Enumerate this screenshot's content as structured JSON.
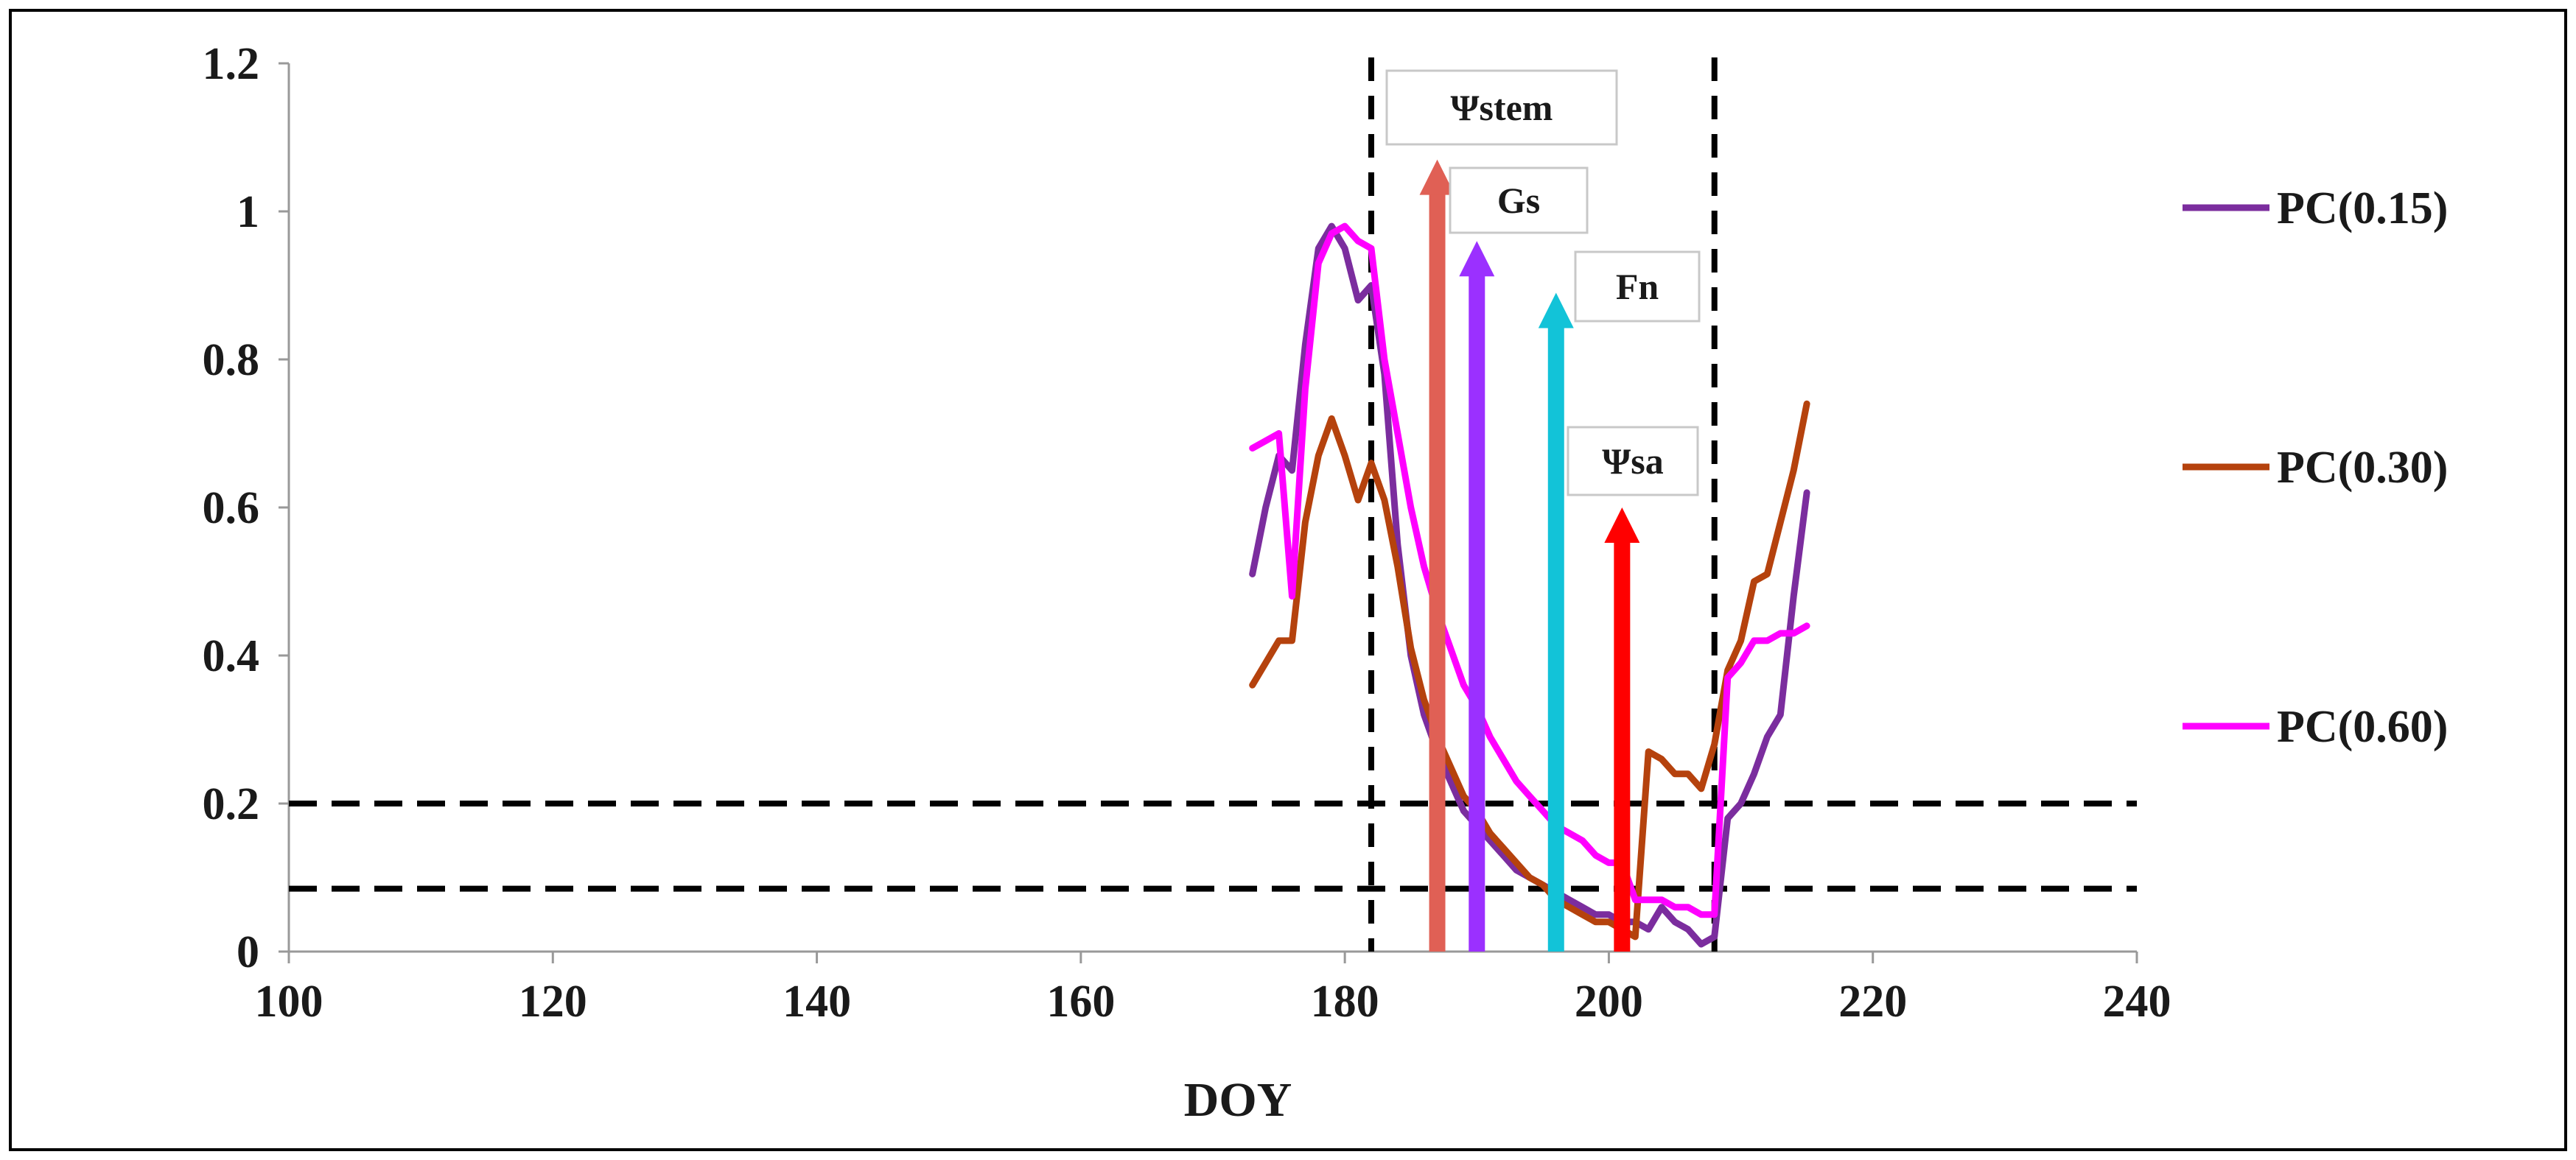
{
  "chart_data": {
    "type": "line",
    "title": "",
    "xlabel": "DOY",
    "ylabel": "",
    "xlim": [
      100,
      240
    ],
    "ylim": [
      0,
      1.2
    ],
    "xticks": [
      100,
      120,
      140,
      160,
      180,
      200,
      220,
      240
    ],
    "yticks": [
      0,
      0.2,
      0.4,
      0.6,
      0.8,
      1,
      1.2
    ],
    "ytick_labels": [
      "0",
      "0.2",
      "0.4",
      "0.6",
      "0.8",
      "1",
      "1.2"
    ],
    "grid": false,
    "legend_position": "right",
    "series": [
      {
        "name": "PC(0.15)",
        "color": "#7B2D9E",
        "x": [
          173,
          174,
          175,
          176,
          177,
          178,
          179,
          180,
          181,
          182,
          183,
          184,
          185,
          186,
          187,
          188,
          189,
          190,
          191,
          192,
          193,
          194,
          195,
          196,
          197,
          198,
          199,
          200,
          201,
          202,
          203,
          204,
          205,
          206,
          207,
          208,
          209,
          210,
          211,
          212,
          213,
          214,
          215
        ],
        "y": [
          0.51,
          0.6,
          0.67,
          0.65,
          0.82,
          0.95,
          0.98,
          0.95,
          0.88,
          0.9,
          0.78,
          0.55,
          0.4,
          0.32,
          0.27,
          0.23,
          0.19,
          0.17,
          0.15,
          0.13,
          0.11,
          0.1,
          0.09,
          0.08,
          0.07,
          0.06,
          0.05,
          0.05,
          0.04,
          0.04,
          0.03,
          0.06,
          0.04,
          0.03,
          0.01,
          0.02,
          0.18,
          0.2,
          0.24,
          0.29,
          0.32,
          0.48,
          0.62
        ]
      },
      {
        "name": "PC(0.30)",
        "color": "#B5420D",
        "x": [
          173,
          174,
          175,
          176,
          177,
          178,
          179,
          180,
          181,
          182,
          183,
          184,
          185,
          186,
          187,
          188,
          189,
          190,
          191,
          192,
          193,
          194,
          195,
          196,
          197,
          198,
          199,
          200,
          201,
          202,
          203,
          204,
          205,
          206,
          207,
          208,
          209,
          210,
          211,
          212,
          213,
          214,
          215
        ],
        "y": [
          0.36,
          0.39,
          0.42,
          0.42,
          0.58,
          0.67,
          0.72,
          0.67,
          0.61,
          0.66,
          0.61,
          0.52,
          0.41,
          0.34,
          0.29,
          0.25,
          0.21,
          0.19,
          0.16,
          0.14,
          0.12,
          0.1,
          0.09,
          0.07,
          0.06,
          0.05,
          0.04,
          0.04,
          0.03,
          0.02,
          0.27,
          0.26,
          0.24,
          0.24,
          0.22,
          0.28,
          0.38,
          0.42,
          0.5,
          0.51,
          0.58,
          0.65,
          0.74
        ]
      },
      {
        "name": "PC(0.60)",
        "color": "#FF00FF",
        "x": [
          173,
          174,
          175,
          176,
          177,
          178,
          179,
          180,
          181,
          182,
          183,
          184,
          185,
          186,
          187,
          188,
          189,
          190,
          191,
          192,
          193,
          194,
          195,
          196,
          197,
          198,
          199,
          200,
          201,
          202,
          203,
          204,
          205,
          206,
          207,
          208,
          209,
          210,
          211,
          212,
          213,
          214,
          215
        ],
        "y": [
          0.68,
          0.69,
          0.7,
          0.48,
          0.76,
          0.93,
          0.97,
          0.98,
          0.96,
          0.95,
          0.8,
          0.7,
          0.6,
          0.52,
          0.46,
          0.41,
          0.36,
          0.33,
          0.29,
          0.26,
          0.23,
          0.21,
          0.19,
          0.17,
          0.16,
          0.15,
          0.13,
          0.12,
          0.12,
          0.07,
          0.07,
          0.07,
          0.06,
          0.06,
          0.05,
          0.05,
          0.37,
          0.39,
          0.42,
          0.42,
          0.43,
          0.43,
          0.44
        ]
      }
    ],
    "reference_lines": {
      "horizontal": [
        0.2,
        0.085
      ],
      "vertical": [
        182,
        208
      ],
      "style": "dashed",
      "color": "#000000"
    },
    "annotations": [
      {
        "label": "Ψstem",
        "x": 187,
        "y_top": 1.07,
        "color": "#E06055"
      },
      {
        "label": "Gs",
        "x": 190,
        "y_top": 0.96,
        "color": "#9B30FF"
      },
      {
        "label": "Fn",
        "x": 196,
        "y_top": 0.89,
        "color": "#12C3D8"
      },
      {
        "label": "Ψsa",
        "x": 201,
        "y_top": 0.6,
        "color": "#FF0000"
      }
    ]
  }
}
